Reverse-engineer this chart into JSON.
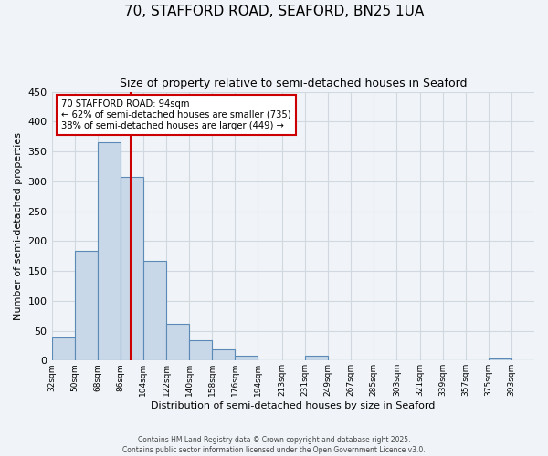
{
  "title1": "70, STAFFORD ROAD, SEAFORD, BN25 1UA",
  "title2": "Size of property relative to semi-detached houses in Seaford",
  "xlabel": "Distribution of semi-detached houses by size in Seaford",
  "ylabel": "Number of semi-detached properties",
  "bin_labels": [
    "32sqm",
    "50sqm",
    "68sqm",
    "86sqm",
    "104sqm",
    "122sqm",
    "140sqm",
    "158sqm",
    "176sqm",
    "194sqm",
    "213sqm",
    "231sqm",
    "249sqm",
    "267sqm",
    "285sqm",
    "303sqm",
    "321sqm",
    "339sqm",
    "357sqm",
    "375sqm",
    "393sqm"
  ],
  "bin_edges": [
    32,
    50,
    68,
    86,
    104,
    122,
    140,
    158,
    176,
    194,
    213,
    231,
    249,
    267,
    285,
    303,
    321,
    339,
    357,
    375,
    393
  ],
  "bar_heights": [
    38,
    184,
    365,
    307,
    167,
    61,
    34,
    19,
    8,
    0,
    0,
    8,
    0,
    0,
    0,
    0,
    0,
    0,
    0,
    3,
    0
  ],
  "bar_color": "#c8d8e8",
  "bar_edge_color": "#5a8ab5",
  "property_size": 94,
  "vline_color": "#cc0000",
  "annotation_box_edge": "#cc0000",
  "annotation_text1": "70 STAFFORD ROAD: 94sqm",
  "annotation_text2": "← 62% of semi-detached houses are smaller (735)",
  "annotation_text3": "38% of semi-detached houses are larger (449) →",
  "ylim": [
    0,
    450
  ],
  "yticks": [
    0,
    50,
    100,
    150,
    200,
    250,
    300,
    350,
    400,
    450
  ],
  "grid_color": "#d0d8e0",
  "bg_color": "#f0f4f8",
  "footer1": "Contains HM Land Registry data © Crown copyright and database right 2025.",
  "footer2": "Contains public sector information licensed under the Open Government Licence v3.0."
}
